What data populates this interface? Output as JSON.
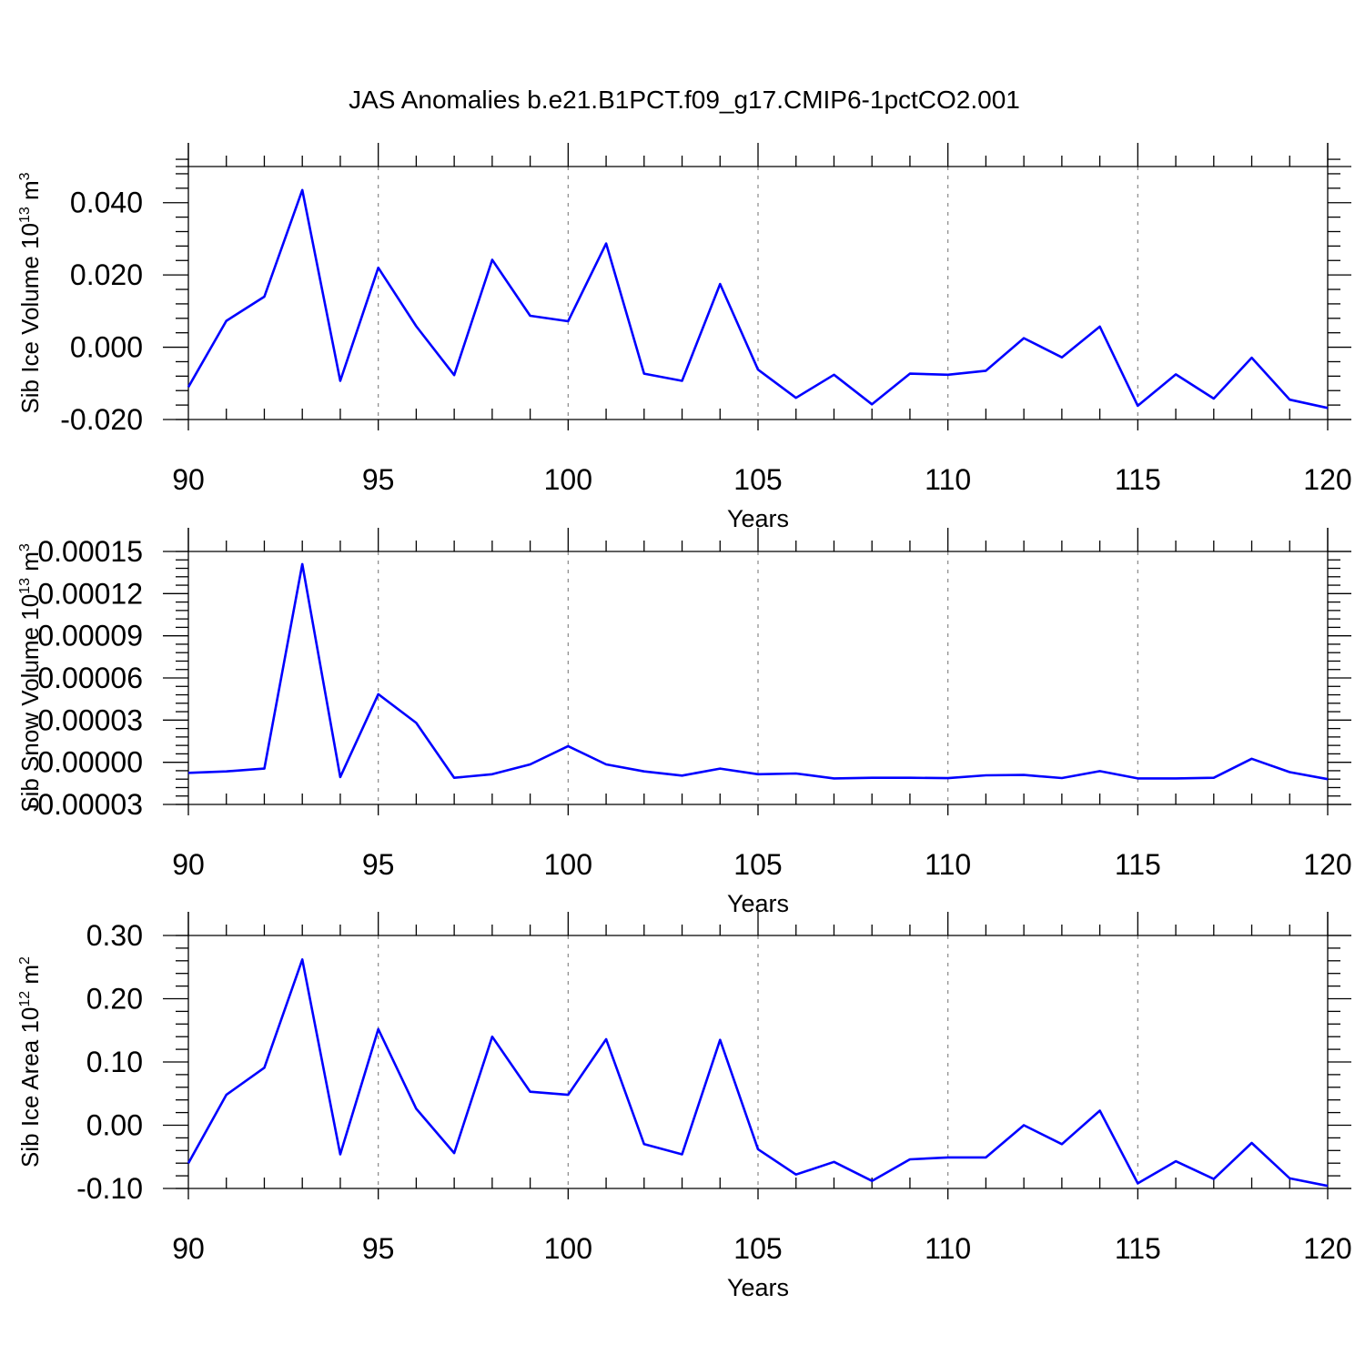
{
  "title": "JAS Anomalies b.e21.B1PCT.f09_g17.CMIP6-1pctCO2.001",
  "line_color": "#0000ff",
  "chart_data": [
    {
      "type": "line",
      "xlabel": "Years",
      "ylabel": {
        "text": "Sib Ice Volume 10",
        "exp": "13",
        "unit": " m",
        "unit_exp": "3"
      },
      "xlim": [
        90,
        120
      ],
      "ylim": [
        -0.02,
        0.05
      ],
      "xticks": [
        90,
        95,
        100,
        105,
        110,
        115,
        120
      ],
      "xtick_labels": [
        "90",
        "95",
        "100",
        "105",
        "110",
        "115",
        "120"
      ],
      "yticks": [
        -0.02,
        0.0,
        0.02,
        0.04
      ],
      "ytick_labels": [
        "-0.020",
        "0.000",
        "0.020",
        "0.040"
      ],
      "x": [
        90,
        91,
        92,
        93,
        94,
        95,
        96,
        97,
        98,
        99,
        100,
        101,
        102,
        103,
        104,
        105,
        106,
        107,
        108,
        109,
        110,
        111,
        112,
        113,
        114,
        115,
        116,
        117,
        118,
        119,
        120
      ],
      "values": [
        -0.011,
        0.0073,
        0.014,
        0.0435,
        -0.0093,
        0.022,
        0.0058,
        -0.0077,
        0.0242,
        0.0087,
        0.0072,
        0.0287,
        -0.0073,
        -0.0093,
        0.0175,
        -0.0062,
        -0.014,
        -0.0076,
        -0.0158,
        -0.0073,
        -0.0076,
        -0.0065,
        0.0025,
        -0.0028,
        0.0057,
        -0.0162,
        -0.0075,
        -0.0142,
        -0.0029,
        -0.0145,
        -0.0168
      ]
    },
    {
      "type": "line",
      "xlabel": "Years",
      "ylabel": {
        "text": "Sib Snow Volume 10",
        "exp": "13",
        "unit": " m",
        "unit_exp": "3"
      },
      "xlim": [
        90,
        120
      ],
      "ylim": [
        -3e-05,
        0.00015
      ],
      "xticks": [
        90,
        95,
        100,
        105,
        110,
        115,
        120
      ],
      "xtick_labels": [
        "90",
        "95",
        "100",
        "105",
        "110",
        "115",
        "120"
      ],
      "yticks": [
        -3e-05,
        0.0,
        3e-05,
        6e-05,
        9e-05,
        0.00012,
        0.00015
      ],
      "ytick_labels": [
        "-0.00003",
        "0.00000",
        "0.00003",
        "0.00006",
        "0.00009",
        "0.00012",
        "0.00015"
      ],
      "x": [
        90,
        91,
        92,
        93,
        94,
        95,
        96,
        97,
        98,
        99,
        100,
        101,
        102,
        103,
        104,
        105,
        106,
        107,
        108,
        109,
        110,
        111,
        112,
        113,
        114,
        115,
        116,
        117,
        118,
        119,
        120
      ],
      "values": [
        -7.5e-06,
        -6.5e-06,
        -4.5e-06,
        0.000141,
        -1.05e-05,
        4.85e-05,
        2.8e-05,
        -1.1e-05,
        -8.5e-06,
        -1.5e-06,
        1.15e-05,
        -1.5e-06,
        -6.5e-06,
        -9.5e-06,
        -4.5e-06,
        -8.5e-06,
        -8e-06,
        -1.15e-05,
        -1.1e-05,
        -1.1e-05,
        -1.13e-05,
        -9.3e-06,
        -9e-06,
        -1.12e-05,
        -6.3e-06,
        -1.15e-05,
        -1.15e-05,
        -1.1e-05,
        2.5e-06,
        -7e-06,
        -1.2e-05
      ]
    },
    {
      "type": "line",
      "xlabel": "Years",
      "ylabel": {
        "text": "Sib Ice Area 10",
        "exp": "12",
        "unit": " m",
        "unit_exp": "2"
      },
      "xlim": [
        90,
        120
      ],
      "ylim": [
        -0.1,
        0.3
      ],
      "xticks": [
        90,
        95,
        100,
        105,
        110,
        115,
        120
      ],
      "xtick_labels": [
        "90",
        "95",
        "100",
        "105",
        "110",
        "115",
        "120"
      ],
      "yticks": [
        -0.1,
        0.0,
        0.1,
        0.2,
        0.3
      ],
      "ytick_labels": [
        "-0.10",
        "0.00",
        "0.10",
        "0.20",
        "0.30"
      ],
      "x": [
        90,
        91,
        92,
        93,
        94,
        95,
        96,
        97,
        98,
        99,
        100,
        101,
        102,
        103,
        104,
        105,
        106,
        107,
        108,
        109,
        110,
        111,
        112,
        113,
        114,
        115,
        116,
        117,
        118,
        119,
        120
      ],
      "values": [
        -0.06,
        0.048,
        0.091,
        0.262,
        -0.046,
        0.152,
        0.026,
        -0.044,
        0.14,
        0.053,
        0.048,
        0.136,
        -0.03,
        -0.046,
        0.135,
        -0.038,
        -0.078,
        -0.058,
        -0.088,
        -0.054,
        -0.051,
        -0.051,
        0.0,
        -0.03,
        0.023,
        -0.092,
        -0.057,
        -0.085,
        -0.028,
        -0.084,
        -0.096
      ]
    }
  ]
}
